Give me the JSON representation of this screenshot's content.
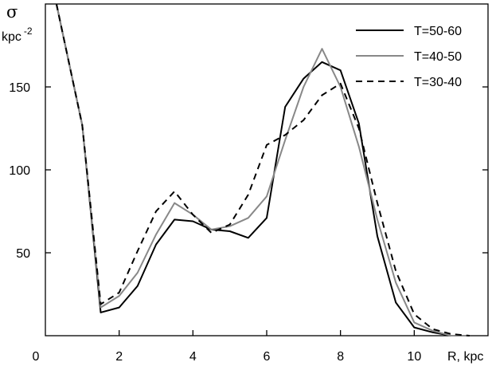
{
  "chart_data": {
    "type": "line",
    "title": "",
    "ylabel": "σ",
    "ylabel_unit_base": "kpc",
    "ylabel_unit_exp": "-2",
    "xlabel": "R, kpc",
    "xlim": [
      0,
      12
    ],
    "ylim": [
      0,
      200
    ],
    "x_ticks": [
      0,
      2,
      4,
      6,
      8,
      10
    ],
    "y_ticks": [
      50,
      100,
      150
    ],
    "legend_position": "top-right",
    "grid": false,
    "series": [
      {
        "name": "T=50-60",
        "color": "#000000",
        "dash": "solid",
        "x": [
          0.3,
          1.0,
          1.5,
          2.0,
          2.5,
          3.0,
          3.5,
          4.0,
          4.5,
          5.0,
          5.5,
          6.0,
          6.5,
          7.0,
          7.5,
          8.0,
          8.5,
          9.0,
          9.5,
          10.0,
          10.5,
          11.0,
          11.5
        ],
        "values": [
          200,
          127,
          14,
          17,
          30,
          55,
          70,
          69,
          64,
          63,
          59,
          71,
          138,
          155,
          165,
          160,
          128,
          60,
          20,
          5,
          2,
          0,
          0
        ]
      },
      {
        "name": "T=40-50",
        "color": "#888888",
        "dash": "solid",
        "x": [
          0.3,
          1.0,
          1.5,
          2.0,
          2.5,
          3.0,
          3.5,
          4.0,
          4.5,
          5.0,
          5.5,
          6.0,
          6.5,
          7.0,
          7.5,
          8.0,
          8.5,
          9.0,
          9.5,
          10.0,
          10.5,
          11.0,
          11.5
        ],
        "values": [
          200,
          127,
          17,
          24,
          38,
          61,
          80,
          73,
          64,
          66,
          71,
          84,
          118,
          150,
          173,
          150,
          114,
          70,
          32,
          8,
          3,
          0,
          0
        ]
      },
      {
        "name": "T=30-40",
        "color": "#000000",
        "dash": "dashed",
        "x": [
          0.3,
          1.0,
          1.5,
          2.0,
          2.5,
          3.0,
          3.5,
          4.0,
          4.5,
          5.0,
          5.5,
          6.0,
          6.5,
          7.0,
          7.5,
          8.0,
          8.5,
          9.0,
          9.5,
          10.0,
          10.5,
          11.0,
          11.5
        ],
        "values": [
          200,
          127,
          19,
          26,
          51,
          75,
          87,
          73,
          62,
          67,
          85,
          115,
          121,
          130,
          145,
          152,
          125,
          80,
          39,
          13,
          4,
          1,
          0
        ]
      }
    ]
  }
}
